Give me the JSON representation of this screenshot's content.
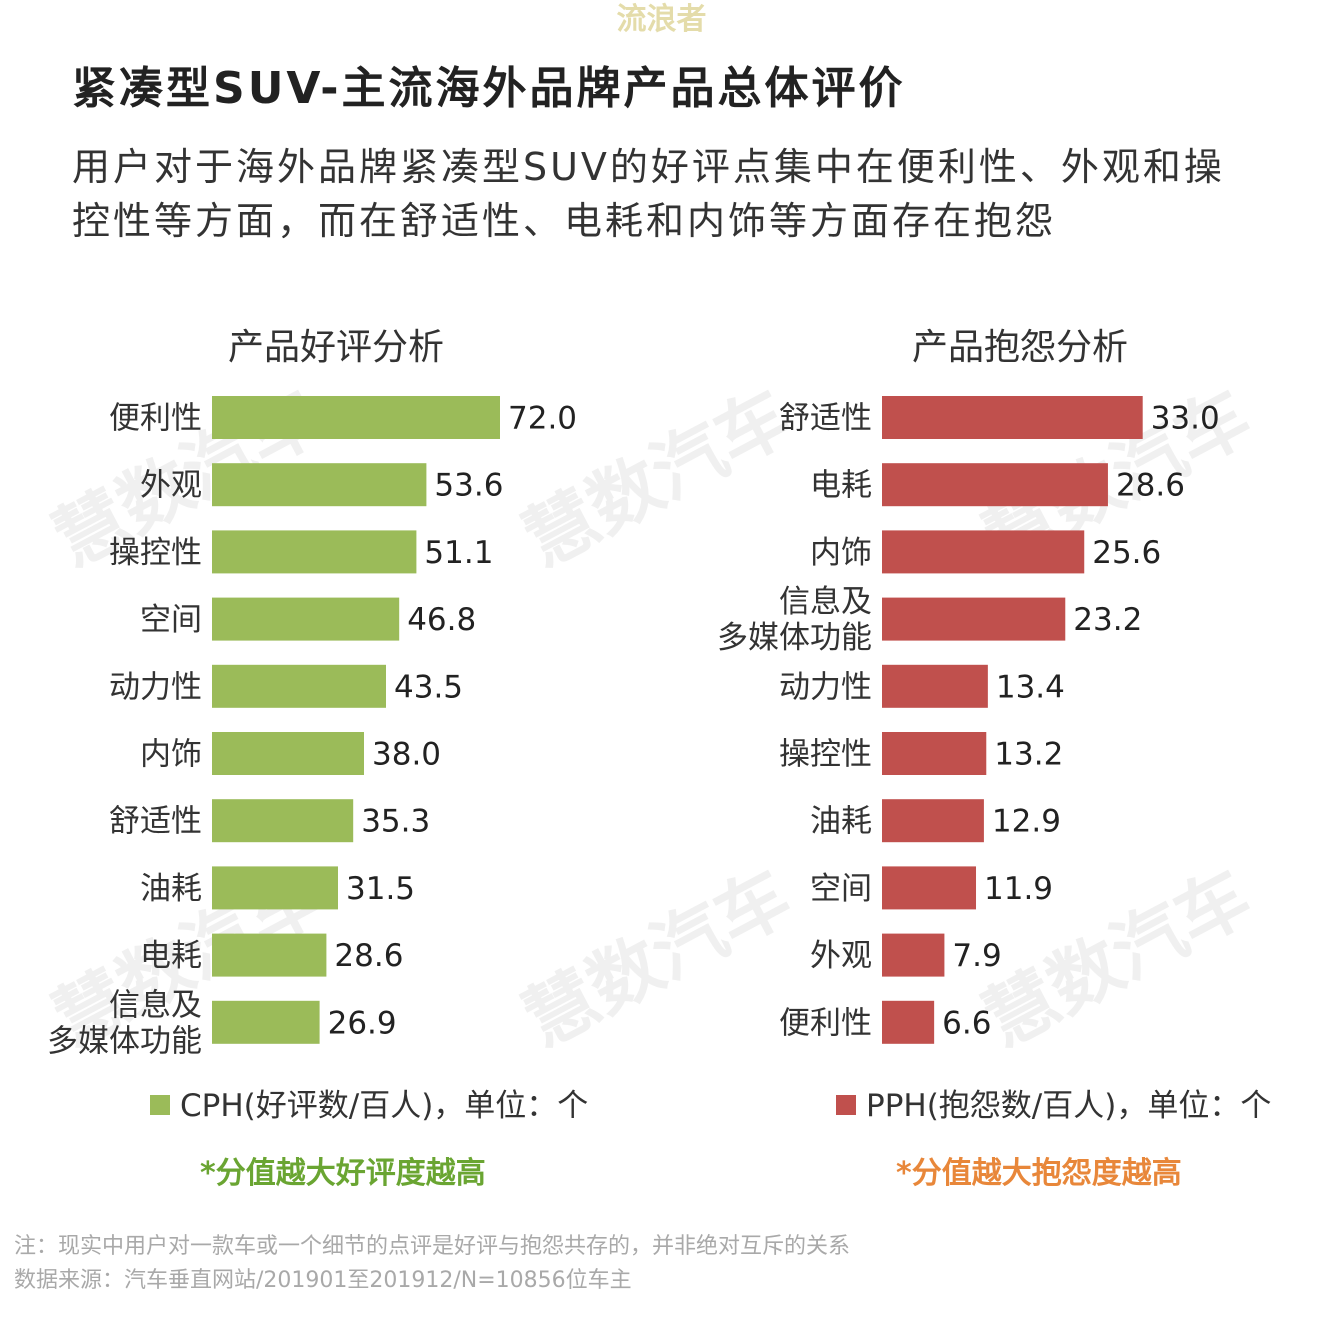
{
  "watermark_top": "流浪者",
  "watermark_bg": "慧数汽车",
  "title": "紧凑型SUV-主流海外品牌产品总体评价",
  "subtitle": "用户对于海外品牌紧凑型SUV的好评点集中在便利性、外观和操控性等方面，而在舒适性、电耗和内饰等方面存在抱怨",
  "colors": {
    "positive": "#9bbb59",
    "negative": "#c0504d",
    "note_positive": "#6aa532",
    "note_negative": "#e8873a"
  },
  "chart_data": [
    {
      "type": "bar",
      "orientation": "horizontal",
      "title": "产品好评分析",
      "categories": [
        "便利性",
        "外观",
        "操控性",
        "空间",
        "动力性",
        "内饰",
        "舒适性",
        "油耗",
        "电耗",
        "信息及\n多媒体功能"
      ],
      "series": [
        {
          "name": "CPH(好评数/百人)，单位：个",
          "values": [
            72.0,
            53.6,
            51.1,
            46.8,
            43.5,
            38.0,
            35.3,
            31.5,
            28.6,
            26.9
          ]
        }
      ],
      "note": "*分值越大好评度越高"
    },
    {
      "type": "bar",
      "orientation": "horizontal",
      "title": "产品抱怨分析",
      "categories": [
        "舒适性",
        "电耗",
        "内饰",
        "信息及\n多媒体功能",
        "动力性",
        "操控性",
        "油耗",
        "空间",
        "外观",
        "便利性"
      ],
      "series": [
        {
          "name": "PPH(抱怨数/百人)，单位：个",
          "values": [
            33.0,
            28.6,
            25.6,
            23.2,
            13.4,
            13.2,
            12.9,
            11.9,
            7.9,
            6.6
          ]
        }
      ],
      "note": "*分值越大抱怨度越高"
    }
  ],
  "footer": {
    "line1": "注：现实中用户对一款车或一个细节的点评是好评与抱怨共存的，并非绝对互斥的关系",
    "line2": "数据来源：汽车垂直网站/201901至201912/N=10856位车主"
  }
}
